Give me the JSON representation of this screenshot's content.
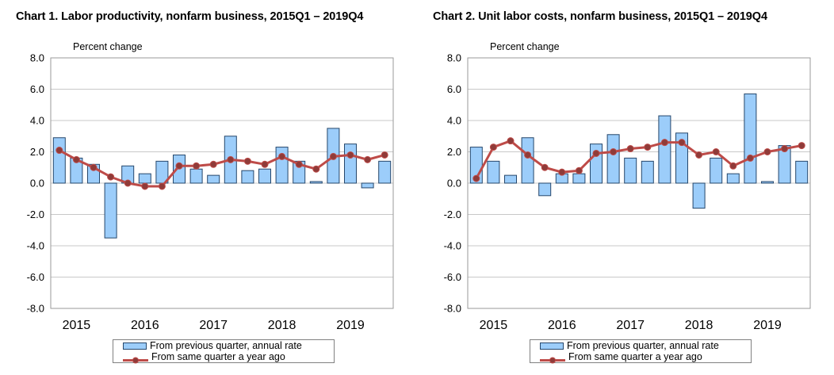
{
  "colors": {
    "bar_fill": "#9CCDFA",
    "bar_border": "#26476B",
    "line": "#BE4B48",
    "marker_fill": "#8F3B39",
    "grid": "#C8C8C8",
    "plot_border": "#9A9A9A",
    "legend_border": "#808080",
    "text": "#000000",
    "background": "#FFFFFF"
  },
  "chart_data": [
    {
      "type": "bar+line",
      "title": "Chart 1. Labor productivity, nonfarm business, 2015Q1 – 2019Q4",
      "ylabel": "Percent change",
      "xlabel": "",
      "ylim": [
        -8,
        8
      ],
      "yticks": [
        "8.0",
        "6.0",
        "4.0",
        "2.0",
        "0.0",
        "-2.0",
        "-4.0",
        "-6.0",
        "-8.0"
      ],
      "year_labels": [
        "2015",
        "2016",
        "2017",
        "2018",
        "2019"
      ],
      "grid": true,
      "legend_position": "bottom",
      "categories": [
        "2015Q1",
        "2015Q2",
        "2015Q3",
        "2015Q4",
        "2016Q1",
        "2016Q2",
        "2016Q3",
        "2016Q4",
        "2017Q1",
        "2017Q2",
        "2017Q3",
        "2017Q4",
        "2018Q1",
        "2018Q2",
        "2018Q3",
        "2018Q4",
        "2019Q1",
        "2019Q2",
        "2019Q3",
        "2019Q4"
      ],
      "series": [
        {
          "name": "From previous quarter, annual rate",
          "type": "bar",
          "values": [
            2.9,
            1.6,
            1.2,
            -3.5,
            1.1,
            0.6,
            1.4,
            1.8,
            0.9,
            0.5,
            3.0,
            0.8,
            0.9,
            2.3,
            1.4,
            0.1,
            3.5,
            2.5,
            -0.3,
            1.4
          ]
        },
        {
          "name": "From same quarter a year ago",
          "type": "line",
          "values": [
            2.1,
            1.5,
            1.0,
            0.4,
            0.0,
            -0.2,
            -0.2,
            1.1,
            1.1,
            1.2,
            1.5,
            1.4,
            1.2,
            1.7,
            1.2,
            0.9,
            1.7,
            1.8,
            1.5,
            1.8
          ]
        }
      ]
    },
    {
      "type": "bar+line",
      "title": "Chart 2. Unit labor costs, nonfarm business, 2015Q1 – 2019Q4",
      "ylabel": "Percent change",
      "xlabel": "",
      "ylim": [
        -8,
        8
      ],
      "yticks": [
        "8.0",
        "6.0",
        "4.0",
        "2.0",
        "0.0",
        "-2.0",
        "-4.0",
        "-6.0",
        "-8.0"
      ],
      "year_labels": [
        "2015",
        "2016",
        "2017",
        "2018",
        "2019"
      ],
      "grid": true,
      "legend_position": "bottom",
      "categories": [
        "2015Q1",
        "2015Q2",
        "2015Q3",
        "2015Q4",
        "2016Q1",
        "2016Q2",
        "2016Q3",
        "2016Q4",
        "2017Q1",
        "2017Q2",
        "2017Q3",
        "2017Q4",
        "2018Q1",
        "2018Q2",
        "2018Q3",
        "2018Q4",
        "2019Q1",
        "2019Q2",
        "2019Q3",
        "2019Q4"
      ],
      "series": [
        {
          "name": "From previous quarter, annual rate",
          "type": "bar",
          "values": [
            2.3,
            1.4,
            0.5,
            2.9,
            -0.8,
            0.6,
            0.6,
            2.5,
            3.1,
            1.6,
            1.4,
            4.3,
            3.2,
            -1.6,
            1.6,
            0.6,
            5.7,
            0.1,
            2.4,
            1.4
          ]
        },
        {
          "name": "From same quarter a year ago",
          "type": "line",
          "values": [
            0.3,
            2.3,
            2.7,
            1.8,
            1.0,
            0.7,
            0.8,
            1.9,
            2.0,
            2.2,
            2.3,
            2.6,
            2.6,
            1.8,
            2.0,
            1.1,
            1.6,
            2.0,
            2.2,
            2.4
          ]
        }
      ]
    }
  ]
}
